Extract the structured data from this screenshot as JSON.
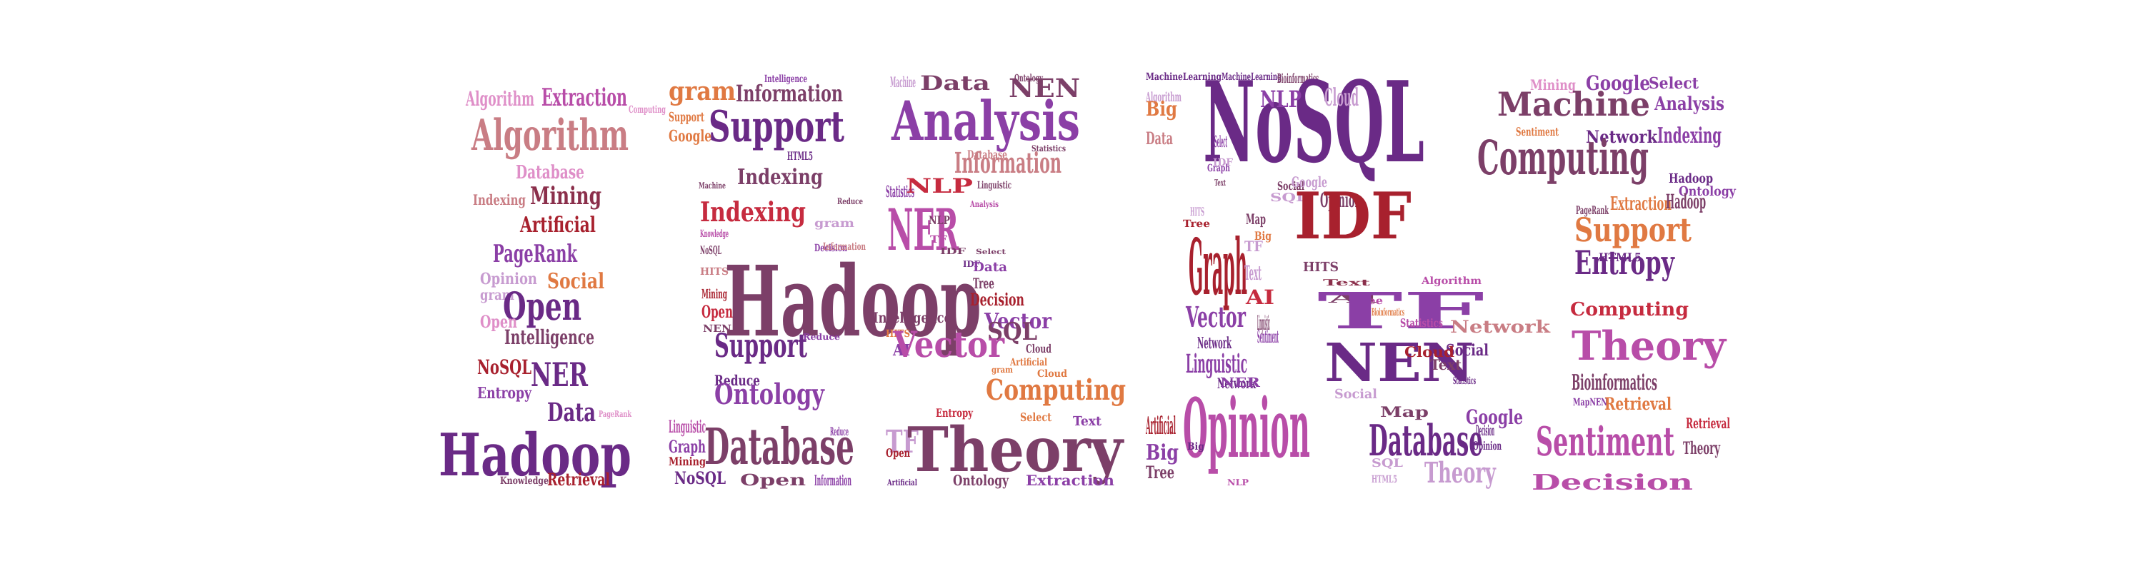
{
  "colors": {
    "purple": "#6a2a86",
    "violet": "#8b3fa6",
    "magenta": "#b84da8",
    "pink": "#df8fc8",
    "rose": "#c97d84",
    "red": "#a8212e",
    "crimson": "#c62b3f",
    "orange": "#e07942",
    "plum": "#7c3f68",
    "wine": "#8b2f4b",
    "lavender": "#c79bd0"
  },
  "words": [
    {
      "text": "Algorithm",
      "color": "pink"
    },
    {
      "text": "Extraction",
      "color": "magenta"
    },
    {
      "text": "Computing",
      "color": "pink"
    },
    {
      "text": "Algorithm",
      "color": "rose"
    },
    {
      "text": "Database",
      "color": "pink"
    },
    {
      "text": "Indexing",
      "color": "rose"
    },
    {
      "text": "Mining",
      "color": "wine"
    },
    {
      "text": "Artificial",
      "color": "red"
    },
    {
      "text": "PageRank",
      "color": "violet"
    },
    {
      "text": "Opinion",
      "color": "lavender"
    },
    {
      "text": "Social",
      "color": "orange"
    },
    {
      "text": "gram",
      "color": "lavender"
    },
    {
      "text": "Open",
      "color": "purple"
    },
    {
      "text": "Open",
      "color": "pink"
    },
    {
      "text": "Intelligence",
      "color": "plum"
    },
    {
      "text": "NoSQL",
      "color": "red"
    },
    {
      "text": "NER",
      "color": "purple"
    },
    {
      "text": "Entropy",
      "color": "violet"
    },
    {
      "text": "Data",
      "color": "purple"
    },
    {
      "text": "PageRank",
      "color": "pink"
    },
    {
      "text": "Hadoop",
      "color": "purple"
    },
    {
      "text": "Knowledge",
      "color": "plum"
    },
    {
      "text": "Retrieval",
      "color": "red"
    },
    {
      "text": "gram",
      "color": "orange"
    },
    {
      "text": "Information",
      "color": "plum"
    },
    {
      "text": "Intelligence",
      "color": "violet"
    },
    {
      "text": "Support",
      "color": "orange"
    },
    {
      "text": "Google",
      "color": "orange"
    },
    {
      "text": "Support",
      "color": "purple"
    },
    {
      "text": "HTML5",
      "color": "purple"
    },
    {
      "text": "Indexing",
      "color": "plum"
    },
    {
      "text": "Machine",
      "color": "plum"
    },
    {
      "text": "Indexing",
      "color": "crimson"
    },
    {
      "text": "Knowledge",
      "color": "magenta"
    },
    {
      "text": "NoSQL",
      "color": "plum"
    },
    {
      "text": "HITS",
      "color": "rose"
    },
    {
      "text": "Hadoop",
      "color": "plum"
    },
    {
      "text": "Mining",
      "color": "red"
    },
    {
      "text": "Open",
      "color": "crimson"
    },
    {
      "text": "NEN",
      "color": "plum"
    },
    {
      "text": "Support",
      "color": "purple"
    },
    {
      "text": "Reduce",
      "color": "purple"
    },
    {
      "text": "Ontology",
      "color": "violet"
    },
    {
      "text": "Linguistic",
      "color": "magenta"
    },
    {
      "text": "Graph",
      "color": "violet"
    },
    {
      "text": "Mining",
      "color": "red"
    },
    {
      "text": "Database",
      "color": "plum"
    },
    {
      "text": "Reduce",
      "color": "violet"
    },
    {
      "text": "NoSQL",
      "color": "purple"
    },
    {
      "text": "Open",
      "color": "plum"
    },
    {
      "text": "Information",
      "color": "violet"
    },
    {
      "text": "Machine",
      "color": "lavender"
    },
    {
      "text": "Data",
      "color": "plum"
    },
    {
      "text": "Ontology",
      "color": "plum"
    },
    {
      "text": "NEN",
      "color": "plum"
    },
    {
      "text": "Analysis",
      "color": "violet"
    },
    {
      "text": "Database",
      "color": "rose"
    },
    {
      "text": "Statistics",
      "color": "plum"
    },
    {
      "text": "Information",
      "color": "rose"
    },
    {
      "text": "Statistics",
      "color": "violet"
    },
    {
      "text": "NLP",
      "color": "crimson"
    },
    {
      "text": "Linguistic",
      "color": "plum"
    },
    {
      "text": "Analysis",
      "color": "magenta"
    },
    {
      "text": "gram",
      "color": "lavender"
    },
    {
      "text": "Reduce",
      "color": "plum"
    },
    {
      "text": "NER",
      "color": "magenta"
    },
    {
      "text": "NLP",
      "color": "plum"
    },
    {
      "text": "TF",
      "color": "magenta"
    },
    {
      "text": "IDF",
      "color": "plum"
    },
    {
      "text": "IDF",
      "color": "purple"
    },
    {
      "text": "Select",
      "color": "plum"
    },
    {
      "text": "Decision",
      "color": "violet"
    },
    {
      "text": "Information",
      "color": "rose"
    },
    {
      "text": "Data",
      "color": "violet"
    },
    {
      "text": "Tree",
      "color": "plum"
    },
    {
      "text": "Decision",
      "color": "red"
    },
    {
      "text": "Vector",
      "color": "violet"
    },
    {
      "text": "SQL",
      "color": "plum"
    },
    {
      "text": "Intelligence",
      "color": "plum"
    },
    {
      "text": "HITS",
      "color": "orange"
    },
    {
      "text": "AI",
      "color": "violet"
    },
    {
      "text": "Vector",
      "color": "magenta"
    },
    {
      "text": "Reduce",
      "color": "violet"
    },
    {
      "text": "Cloud",
      "color": "plum"
    },
    {
      "text": "Artificial",
      "color": "orange"
    },
    {
      "text": "gram",
      "color": "orange"
    },
    {
      "text": "Cloud",
      "color": "orange"
    },
    {
      "text": "Computing",
      "color": "orange"
    },
    {
      "text": "Entropy",
      "color": "crimson"
    },
    {
      "text": "Select",
      "color": "orange"
    },
    {
      "text": "Text",
      "color": "violet"
    },
    {
      "text": "TF",
      "color": "lavender"
    },
    {
      "text": "Open",
      "color": "red"
    },
    {
      "text": "Theory",
      "color": "plum"
    },
    {
      "text": "Artificial",
      "color": "purple"
    },
    {
      "text": "Ontology",
      "color": "plum"
    },
    {
      "text": "Extraction",
      "color": "violet"
    },
    {
      "text": "MachineLearning",
      "color": "purple"
    },
    {
      "text": "MachineLearning",
      "color": "purple"
    },
    {
      "text": "Bioinformatics",
      "color": "plum"
    },
    {
      "text": "Algorithm",
      "color": "lavender"
    },
    {
      "text": "NoSQL",
      "color": "purple"
    },
    {
      "text": "Big",
      "color": "orange"
    },
    {
      "text": "NLP",
      "color": "violet"
    },
    {
      "text": "Cloud",
      "color": "lavender"
    },
    {
      "text": "Data",
      "color": "rose"
    },
    {
      "text": "Select",
      "color": "violet"
    },
    {
      "text": "IDF",
      "color": "lavender"
    },
    {
      "text": "Graph",
      "color": "violet"
    },
    {
      "text": "Text",
      "color": "plum"
    },
    {
      "text": "Social",
      "color": "plum"
    },
    {
      "text": "SQL",
      "color": "lavender"
    },
    {
      "text": "Google",
      "color": "lavender"
    },
    {
      "text": "Opinion",
      "color": "plum"
    },
    {
      "text": "HITS",
      "color": "lavender"
    },
    {
      "text": "Tree",
      "color": "red"
    },
    {
      "text": "Map",
      "color": "plum"
    },
    {
      "text": "Big",
      "color": "orange"
    },
    {
      "text": "Graph",
      "color": "red"
    },
    {
      "text": "TF",
      "color": "lavender"
    },
    {
      "text": "Text",
      "color": "lavender"
    },
    {
      "text": "AI",
      "color": "crimson"
    },
    {
      "text": "IDF",
      "color": "red"
    },
    {
      "text": "HITS",
      "color": "plum"
    },
    {
      "text": "AI",
      "color": "plum"
    },
    {
      "text": "Text",
      "color": "wine"
    },
    {
      "text": "Vector",
      "color": "violet"
    },
    {
      "text": "Linguistic",
      "color": "plum"
    },
    {
      "text": "Algorithm",
      "color": "magenta"
    },
    {
      "text": "Tree",
      "color": "magenta"
    },
    {
      "text": "TF",
      "color": "violet"
    },
    {
      "text": "Bioinformatics",
      "color": "orange"
    },
    {
      "text": "Network",
      "color": "rose"
    },
    {
      "text": "Statistics",
      "color": "magenta"
    },
    {
      "text": "Sentiment",
      "color": "violet"
    },
    {
      "text": "Network",
      "color": "purple"
    },
    {
      "text": "NEN",
      "color": "purple"
    },
    {
      "text": "Social",
      "color": "purple"
    },
    {
      "text": "Linguistic",
      "color": "violet"
    },
    {
      "text": "Social",
      "color": "lavender"
    },
    {
      "text": "Cloud",
      "color": "red"
    },
    {
      "text": "Text",
      "color": "plum"
    },
    {
      "text": "Statistics",
      "color": "purple"
    },
    {
      "text": "Network",
      "color": "purple"
    },
    {
      "text": "NER",
      "color": "violet"
    },
    {
      "text": "Artificial",
      "color": "red"
    },
    {
      "text": "Opinion",
      "color": "magenta"
    },
    {
      "text": "Big",
      "color": "violet"
    },
    {
      "text": "Big",
      "color": "purple"
    },
    {
      "text": "Tree",
      "color": "plum"
    },
    {
      "text": "NLP",
      "color": "magenta"
    },
    {
      "text": "Map",
      "color": "plum"
    },
    {
      "text": "Google",
      "color": "violet"
    },
    {
      "text": "Database",
      "color": "purple"
    },
    {
      "text": "Decision",
      "color": "purple"
    },
    {
      "text": "Opinion",
      "color": "purple"
    },
    {
      "text": "SQL",
      "color": "lavender"
    },
    {
      "text": "HTML5",
      "color": "lavender"
    },
    {
      "text": "Theory",
      "color": "lavender"
    },
    {
      "text": "Mining",
      "color": "pink"
    },
    {
      "text": "Google",
      "color": "violet"
    },
    {
      "text": "Select",
      "color": "violet"
    },
    {
      "text": "Machine",
      "color": "plum"
    },
    {
      "text": "Analysis",
      "color": "violet"
    },
    {
      "text": "Sentiment",
      "color": "orange"
    },
    {
      "text": "Network",
      "color": "purple"
    },
    {
      "text": "Indexing",
      "color": "violet"
    },
    {
      "text": "Computing",
      "color": "plum"
    },
    {
      "text": "Hadoop",
      "color": "purple"
    },
    {
      "text": "Ontology",
      "color": "violet"
    },
    {
      "text": "PageRank",
      "color": "plum"
    },
    {
      "text": "Extraction",
      "color": "orange"
    },
    {
      "text": "Hadoop",
      "color": "plum"
    },
    {
      "text": "Support",
      "color": "orange"
    },
    {
      "text": "HTML5",
      "color": "purple"
    },
    {
      "text": "Entropy",
      "color": "purple"
    },
    {
      "text": "Computing",
      "color": "crimson"
    },
    {
      "text": "Theory",
      "color": "magenta"
    },
    {
      "text": "Bioinformatics",
      "color": "plum"
    },
    {
      "text": "MapNEN",
      "color": "violet"
    },
    {
      "text": "Retrieval",
      "color": "orange"
    },
    {
      "text": "Retrieval",
      "color": "crimson"
    },
    {
      "text": "Sentiment",
      "color": "magenta"
    },
    {
      "text": "Theory",
      "color": "plum"
    },
    {
      "text": "Decision",
      "color": "magenta"
    },
    {
      "text": "HTML5",
      "color": "violet"
    },
    {
      "text": "MachineLearning",
      "color": "red"
    }
  ]
}
